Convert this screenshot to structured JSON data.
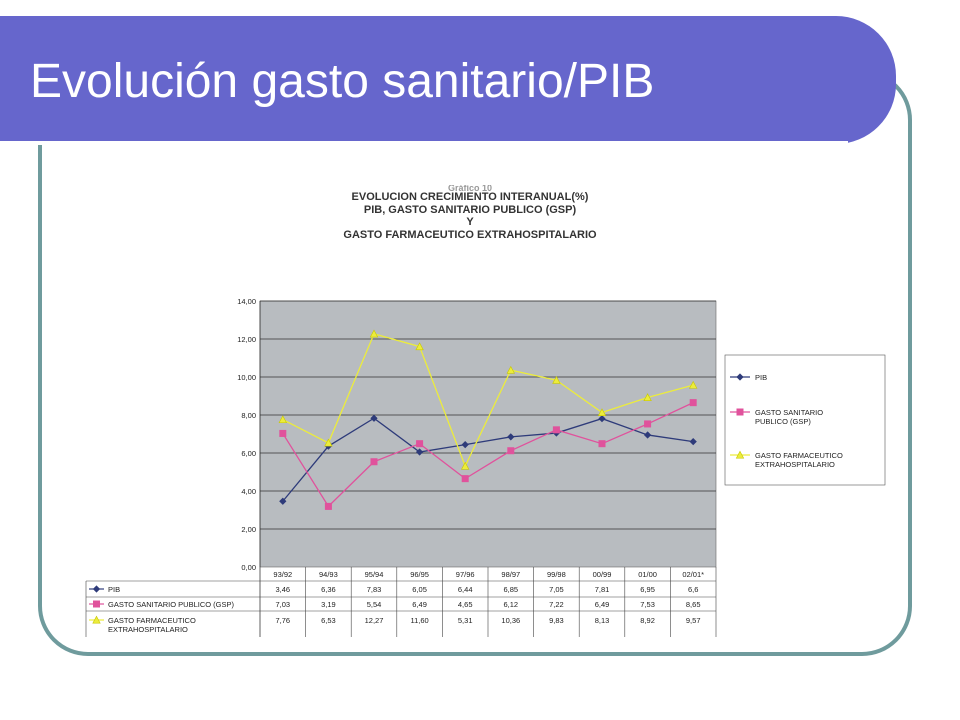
{
  "slide": {
    "title": "Evolución gasto sanitario/PIB"
  },
  "colors": {
    "title_bar": "#6666cc",
    "frame": "#6f9b9d",
    "plot_bg": "#b8bcc0"
  },
  "chart_data": {
    "type": "line",
    "figure_label": "Gráfico 10",
    "title_lines": [
      "EVOLUCION CRECIMIENTO INTERANUAL(%)",
      "PIB, GASTO SANITARIO PUBLICO (GSP)",
      "Y",
      "GASTO FARMACEUTICO EXTRAHOSPITALARIO"
    ],
    "categories": [
      "93/92",
      "94/93",
      "95/94",
      "96/95",
      "97/96",
      "98/97",
      "99/98",
      "00/99",
      "01/00",
      "02/01*"
    ],
    "ylim": [
      0,
      14
    ],
    "yticks": [
      "0,00",
      "2,00",
      "4,00",
      "6,00",
      "8,00",
      "10,00",
      "12,00",
      "14,00"
    ],
    "grid": true,
    "legend_position": "right",
    "series": [
      {
        "name": "PIB",
        "legend_lines": [
          "PIB"
        ],
        "table_label_lines": [
          "PIB"
        ],
        "color": "#2e3b7a",
        "marker": "diamond",
        "values": [
          3.46,
          6.36,
          7.83,
          6.05,
          6.44,
          6.85,
          7.05,
          7.81,
          6.95,
          6.6
        ],
        "labels": [
          "3,46",
          "6,36",
          "7,83",
          "6,05",
          "6,44",
          "6,85",
          "7,05",
          "7,81",
          "6,95",
          "6,6"
        ]
      },
      {
        "name": "GASTO SANITARIO PUBLICO (GSP)",
        "legend_lines": [
          "GASTO SANITARIO",
          "PUBLICO (GSP)"
        ],
        "table_label_lines": [
          "GASTO SANITARIO PUBLICO (GSP)"
        ],
        "color": "#e0529c",
        "marker": "square",
        "values": [
          7.03,
          3.19,
          5.54,
          6.49,
          4.65,
          6.12,
          7.22,
          6.49,
          7.53,
          8.65
        ],
        "labels": [
          "7,03",
          "3,19",
          "5,54",
          "6,49",
          "4,65",
          "6,12",
          "7,22",
          "6,49",
          "7,53",
          "8,65"
        ]
      },
      {
        "name": "GASTO FARMACEUTICO EXTRAHOSPITALARIO",
        "legend_lines": [
          "GASTO FARMACEUTICO",
          "EXTRAHOSPITALARIO"
        ],
        "table_label_lines": [
          "GASTO FARMACEUTICO",
          "EXTRAHOSPITALARIO"
        ],
        "color": "#ecec3c",
        "marker": "triangle",
        "values": [
          7.76,
          6.53,
          12.27,
          11.6,
          5.31,
          10.36,
          9.83,
          8.13,
          8.92,
          9.57
        ],
        "labels": [
          "7,76",
          "6,53",
          "12,27",
          "11,60",
          "5,31",
          "10,36",
          "9,83",
          "8,13",
          "8,92",
          "9,57"
        ]
      }
    ]
  }
}
